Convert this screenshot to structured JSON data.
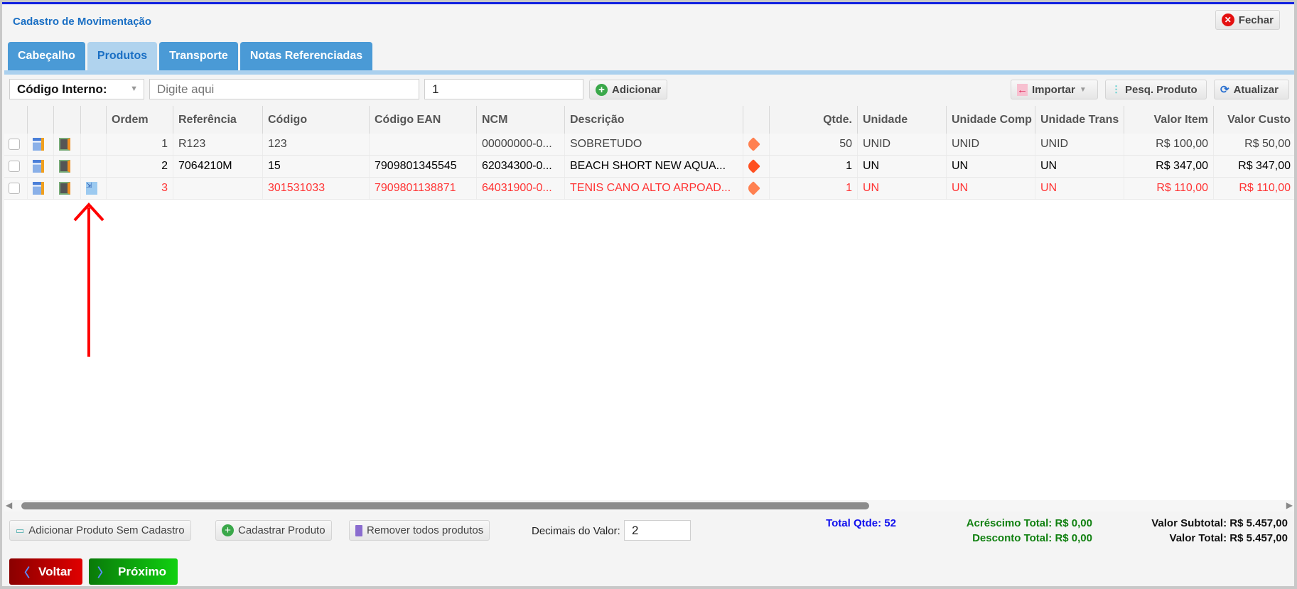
{
  "window": {
    "title": "Cadastro de Movimentação",
    "close_label": "Fechar"
  },
  "tabs": [
    {
      "label": "Cabeçalho"
    },
    {
      "label": "Produtos",
      "active": true
    },
    {
      "label": "Transporte"
    },
    {
      "label": "Notas Referenciadas"
    }
  ],
  "toolbar": {
    "search_type": "Código Interno:",
    "search_placeholder": "Digite aqui",
    "quantity": "1",
    "add_label": "Adicionar",
    "import_label": "Importar",
    "search_product_label": "Pesq. Produto",
    "refresh_label": "Atualizar"
  },
  "columns": [
    "",
    "",
    "",
    "",
    "Ordem",
    "Referência",
    "Código",
    "Código EAN",
    "NCM",
    "Descrição",
    "",
    "Qtde.",
    "Unidade",
    "Unidade Comp",
    "Unidade Trans",
    "Valor Item",
    "Valor Custo"
  ],
  "rows": [
    {
      "ordem": "1",
      "referencia": "R123",
      "codigo": "123",
      "ean": "",
      "ncm": "00000000-0...",
      "descricao": "SOBRETUDO",
      "qtde": "50",
      "unidade": "UNID",
      "un_comp": "UNID",
      "un_trans": "UNID",
      "valor_item": "R$ 100,00",
      "valor_custo": "R$ 50,00",
      "color": "#444444"
    },
    {
      "ordem": "2",
      "referencia": "7064210M",
      "codigo": "15",
      "ean": "7909801345545",
      "ncm": "62034300-0...",
      "descricao": "BEACH SHORT NEW AQUA...",
      "qtde": "1",
      "unidade": "UN",
      "un_comp": "UN",
      "un_trans": "UN",
      "valor_item": "R$ 347,00",
      "valor_custo": "R$ 347,00",
      "color": "#000000"
    },
    {
      "ordem": "3",
      "referencia": "",
      "codigo": "301531033",
      "ean": "7909801138871",
      "ncm": "64031900-0...",
      "descricao": "TENIS CANO ALTO ARPOAD...",
      "qtde": "1",
      "unidade": "UN",
      "un_comp": "UN",
      "un_trans": "UN",
      "valor_item": "R$ 110,00",
      "valor_custo": "R$ 110,00",
      "color": "#ff3333"
    }
  ],
  "footer": {
    "add_without_reg": "Adicionar Produto Sem Cadastro",
    "register_product": "Cadastrar Produto",
    "remove_all": "Remover todos produtos",
    "decimals_label": "Decimais do Valor:",
    "decimals_value": "2",
    "total_qty": "Total Qtde: 52",
    "increase_total": "Acréscimo Total: R$ 0,00",
    "discount_total": "Desconto Total: R$ 0,00",
    "subtotal": "Valor Subtotal: R$ 5.457,00",
    "total": "Valor Total: R$ 5.457,00",
    "back_label": "Voltar",
    "next_label": "Próximo"
  },
  "colors": {
    "accent": "#4a9ad6",
    "title": "#1a6fc4",
    "error_row": "#ff3333",
    "back": "#c00000",
    "next": "#14b814",
    "annotation_arrow": "#ff0000"
  }
}
